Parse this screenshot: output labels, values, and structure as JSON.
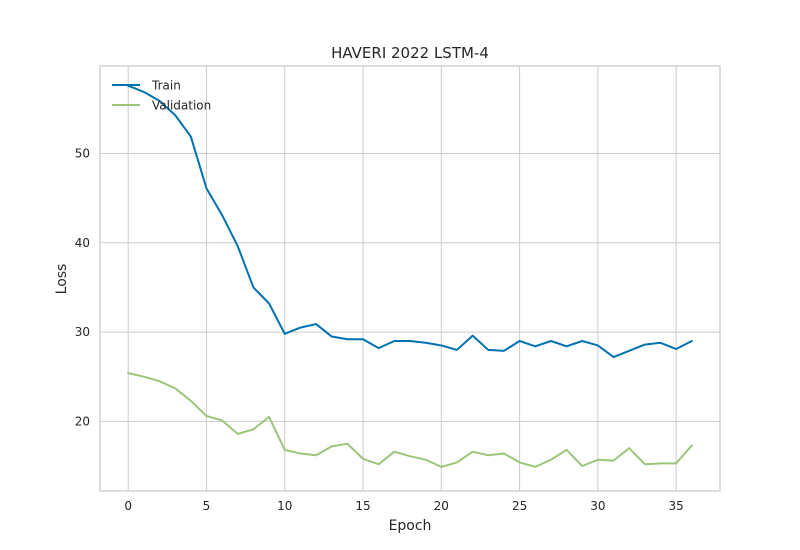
{
  "chart_data": {
    "type": "line",
    "title": "HAVERI 2022 LSTM-4",
    "xlabel": "Epoch",
    "ylabel": "Loss",
    "xlim": [
      -1.8,
      37.8
    ],
    "ylim": [
      12.2,
      59.8
    ],
    "xticks": [
      0,
      5,
      10,
      15,
      20,
      25,
      30,
      35
    ],
    "yticks": [
      20,
      30,
      40,
      50
    ],
    "grid": true,
    "legend_position": "top-left",
    "x": [
      0,
      1,
      2,
      3,
      4,
      5,
      6,
      7,
      8,
      9,
      10,
      11,
      12,
      13,
      14,
      15,
      16,
      17,
      18,
      19,
      20,
      21,
      22,
      23,
      24,
      25,
      26,
      27,
      28,
      29,
      30,
      31,
      32,
      33,
      34,
      35,
      36
    ],
    "series": [
      {
        "name": "Train",
        "color": "#0072b2",
        "values": [
          57.6,
          56.9,
          55.9,
          54.3,
          51.9,
          46.1,
          43.1,
          39.6,
          35.0,
          33.2,
          29.8,
          30.5,
          30.9,
          29.5,
          29.2,
          29.2,
          28.2,
          29.0,
          29.0,
          28.8,
          28.5,
          28.0,
          29.6,
          28.0,
          27.9,
          29.0,
          28.4,
          29.0,
          28.4,
          29.0,
          28.5,
          27.2,
          27.9,
          28.6,
          28.8,
          28.1,
          29.0
        ]
      },
      {
        "name": "Validation",
        "color": "#9bc67a",
        "values": [
          25.4,
          25.0,
          24.5,
          23.7,
          22.3,
          20.6,
          20.1,
          18.6,
          19.1,
          20.5,
          16.8,
          16.4,
          16.2,
          17.2,
          17.5,
          15.8,
          15.2,
          16.6,
          16.1,
          15.7,
          14.9,
          15.4,
          16.6,
          16.2,
          16.4,
          15.4,
          14.9,
          15.7,
          16.8,
          15.0,
          15.7,
          15.6,
          17.0,
          15.2,
          15.3,
          15.3,
          17.3
        ]
      }
    ]
  }
}
